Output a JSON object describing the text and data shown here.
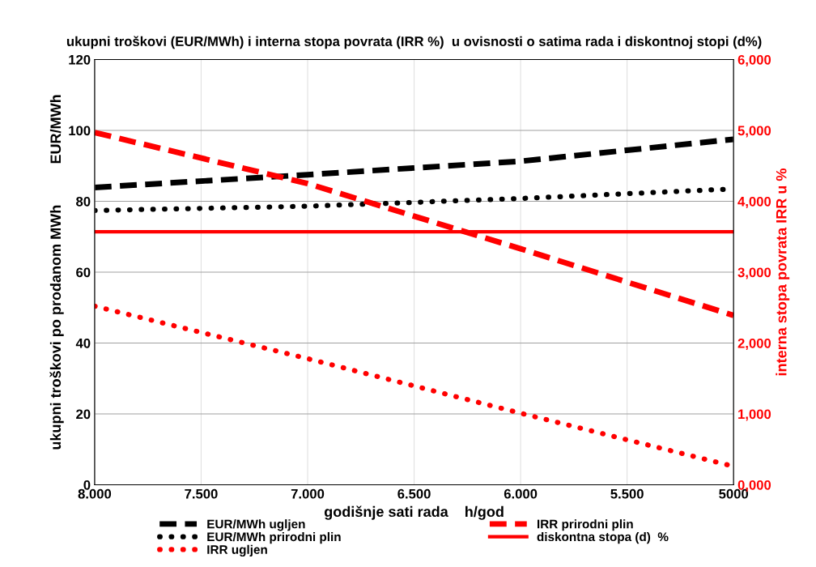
{
  "chart_data": {
    "type": "line",
    "title": "ukupni troškovi (EUR/MWh) i interna stopa povrata (IRR %)  u ovisnosti o satima rada i diskontnoj stopi (d%)",
    "xlabel": "godišnje sati rada    h/god",
    "ylabel": "ukupni troškovi po prodanom MWh          EUR/MWh",
    "y2label": "interna stopa povrata IRR u %",
    "x": [
      8000,
      7000,
      6000,
      5000
    ],
    "series": [
      {
        "name": "EUR/MWh ugljen",
        "color": "#000000",
        "line_style": "dashed",
        "values": [
          83.9,
          87.5,
          91.3,
          97.5
        ]
      },
      {
        "name": "EUR/MWh prirodni plin",
        "color": "#000000",
        "line_style": "dotted",
        "values": [
          77.4,
          78.6,
          80.8,
          83.5
        ]
      },
      {
        "name": "IRR ugljen",
        "color": "#ff0000",
        "line_style": "dotted",
        "axis": "y2",
        "values": [
          2.52,
          1.78,
          1.01,
          0.26
        ]
      },
      {
        "name": "IRR prirodni plin",
        "color": "#ff0000",
        "line_style": "dashed",
        "axis": "y2",
        "values": [
          4.97,
          4.25,
          3.33,
          2.39
        ]
      }
    ],
    "ref_lines": [
      {
        "axis": "y2",
        "value": 3.57,
        "label": "diskontna stopa (d)  %",
        "color": "#ff0000",
        "line_style": "solid"
      }
    ],
    "xlim": [
      8000,
      5000
    ],
    "xticks": [
      {
        "value": 8000,
        "label": "8.000"
      },
      {
        "value": 7500,
        "label": "7.500"
      },
      {
        "value": 7000,
        "label": "7.000"
      },
      {
        "value": 6500,
        "label": "6.500"
      },
      {
        "value": 6000,
        "label": "6.000"
      },
      {
        "value": 5500,
        "label": "5.500"
      },
      {
        "value": 5000,
        "label": "5000"
      }
    ],
    "ylim": [
      0,
      120
    ],
    "yticks": [
      0,
      20,
      40,
      60,
      80,
      100,
      120
    ],
    "y2lim": [
      0,
      6
    ],
    "y2ticks": [
      {
        "value": 0,
        "label": "0,000"
      },
      {
        "value": 1,
        "label": "1,000"
      },
      {
        "value": 2,
        "label": "2,000"
      },
      {
        "value": 3,
        "label": "3,000"
      },
      {
        "value": 4,
        "label": "4,000"
      },
      {
        "value": 5,
        "label": "5,000"
      },
      {
        "value": 6,
        "label": "6,000"
      }
    ],
    "grid": true,
    "legend": "bottom"
  }
}
